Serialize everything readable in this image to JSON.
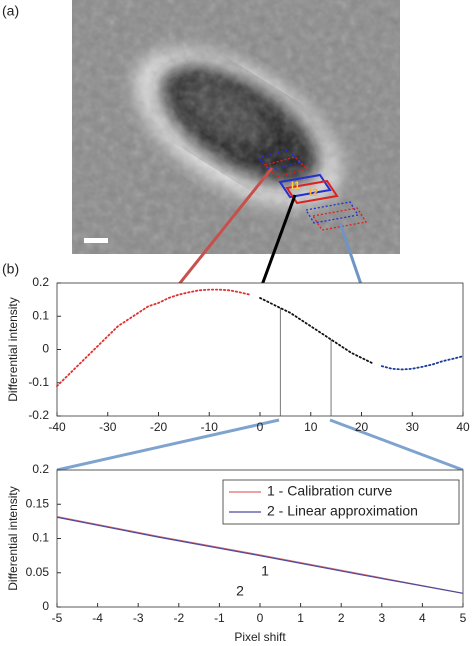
{
  "panels": [
    "(a)",
    "(b)"
  ],
  "image_labels": [
    "I1",
    "I2"
  ],
  "chart_data": [
    {
      "type": "line",
      "ylabel": "Differential intensity",
      "xlim": [
        -40,
        40
      ],
      "xticks": [
        -40,
        -30,
        -20,
        -10,
        0,
        10,
        20,
        30,
        40
      ],
      "ylim": [
        -0.2,
        0.2
      ],
      "yticks": [
        -0.2,
        -0.1,
        0,
        0.1,
        0.2
      ],
      "line_style": "dotted",
      "zoom_range": [
        4,
        14
      ],
      "series": [
        {
          "color": "#e03030",
          "x": [
            -40,
            -38,
            -36,
            -34,
            -32,
            -30,
            -28,
            -26,
            -24,
            -22,
            -20,
            -18,
            -16,
            -14,
            -12,
            -10,
            -8,
            -6,
            -4,
            -2
          ],
          "values": [
            -0.11,
            -0.08,
            -0.05,
            -0.02,
            0.01,
            0.04,
            0.07,
            0.09,
            0.11,
            0.13,
            0.14,
            0.155,
            0.165,
            0.172,
            0.178,
            0.18,
            0.18,
            0.178,
            0.172,
            0.165
          ]
        },
        {
          "color": "#111111",
          "x": [
            0,
            2,
            4,
            6,
            8,
            10,
            12,
            14,
            16,
            18,
            20,
            22
          ],
          "values": [
            0.155,
            0.14,
            0.125,
            0.11,
            0.09,
            0.07,
            0.05,
            0.03,
            0.01,
            -0.01,
            -0.025,
            -0.04
          ]
        },
        {
          "color": "#1a3a9a",
          "x": [
            24,
            26,
            28,
            30,
            32,
            34,
            36,
            38,
            40
          ],
          "values": [
            -0.05,
            -0.058,
            -0.06,
            -0.058,
            -0.052,
            -0.045,
            -0.035,
            -0.028,
            -0.02
          ]
        }
      ]
    },
    {
      "type": "line",
      "xlabel": "Pixel shift",
      "ylabel": "Differential intensity",
      "xlim": [
        -5,
        5
      ],
      "xticks": [
        -5,
        -4,
        -3,
        -2,
        -1,
        0,
        1,
        2,
        3,
        4,
        5
      ],
      "ylim": [
        0,
        0.2
      ],
      "yticks": [
        0,
        0.05,
        0.1,
        0.15,
        0.2
      ],
      "legend": "top-right",
      "annotations": [
        "1",
        "2"
      ],
      "series": [
        {
          "name": "1 - Calibration curve",
          "color": "#e06a6a",
          "x": [
            -5,
            -2.5,
            0,
            2.5,
            5
          ],
          "values": [
            0.132,
            0.103,
            0.076,
            0.048,
            0.02
          ]
        },
        {
          "name": "2 - Linear approximation",
          "color": "#4a4aa0",
          "x": [
            -5,
            -2.5,
            0,
            2.5,
            5
          ],
          "values": [
            0.131,
            0.102,
            0.075,
            0.047,
            0.02
          ]
        }
      ]
    }
  ]
}
